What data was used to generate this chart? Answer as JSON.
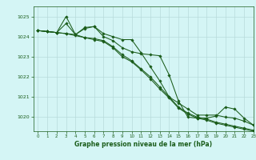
{
  "title": "Graphe pression niveau de la mer (hPa)",
  "background_color": "#d4f5f5",
  "grid_color": "#b8dada",
  "line_color": "#1a5c1a",
  "xlim": [
    -0.5,
    23
  ],
  "ylim": [
    1019.3,
    1025.5
  ],
  "xticks": [
    0,
    1,
    2,
    3,
    4,
    5,
    6,
    7,
    8,
    9,
    10,
    11,
    12,
    13,
    14,
    15,
    16,
    17,
    18,
    19,
    20,
    21,
    22,
    23
  ],
  "yticks": [
    1020,
    1021,
    1022,
    1023,
    1024,
    1025
  ],
  "series": [
    [
      1024.3,
      1024.25,
      1024.2,
      1025.0,
      1024.1,
      1024.45,
      1024.5,
      1024.0,
      1023.8,
      1023.45,
      1023.25,
      1023.15,
      1023.1,
      1023.05,
      1022.1,
      1020.8,
      1020.0,
      1019.95,
      1019.95,
      1020.05,
      1020.5,
      1020.4,
      1019.95,
      1019.6
    ],
    [
      1024.3,
      1024.25,
      1024.2,
      1024.65,
      1024.1,
      1024.4,
      1024.5,
      1024.15,
      1024.0,
      1023.85,
      1023.85,
      1023.2,
      1022.5,
      1021.8,
      1021.0,
      1020.7,
      1020.4,
      1020.1,
      1020.1,
      1020.1,
      1020.0,
      1019.95,
      1019.8,
      1019.6
    ],
    [
      1024.3,
      1024.25,
      1024.2,
      1024.15,
      1024.1,
      1023.95,
      1023.9,
      1023.8,
      1023.5,
      1023.1,
      1022.8,
      1022.4,
      1022.0,
      1021.5,
      1021.0,
      1020.5,
      1020.2,
      1020.0,
      1019.9,
      1019.75,
      1019.65,
      1019.55,
      1019.45,
      1019.35
    ],
    [
      1024.3,
      1024.25,
      1024.2,
      1024.15,
      1024.05,
      1023.95,
      1023.85,
      1023.75,
      1023.45,
      1023.0,
      1022.75,
      1022.35,
      1021.9,
      1021.4,
      1020.95,
      1020.45,
      1020.15,
      1019.95,
      1019.85,
      1019.7,
      1019.6,
      1019.5,
      1019.4,
      1019.3
    ]
  ]
}
